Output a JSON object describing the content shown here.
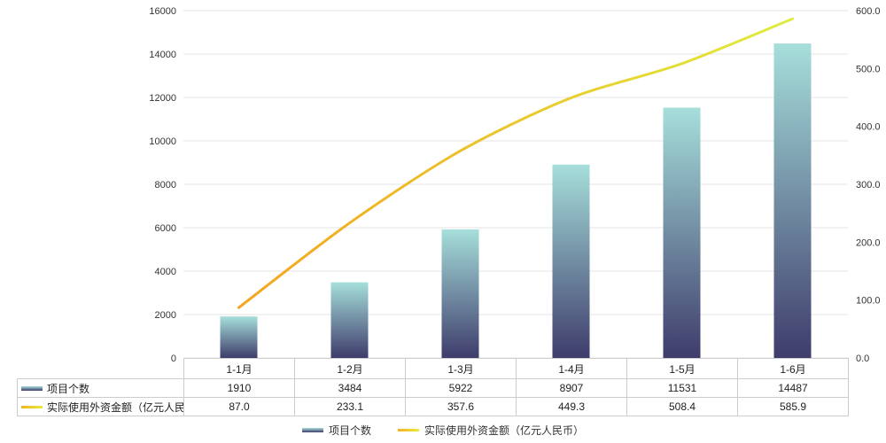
{
  "chart_data": {
    "type": "combo",
    "categories": [
      "1-1月",
      "1-2月",
      "1-3月",
      "1-4月",
      "1-5月",
      "1-6月"
    ],
    "series": [
      {
        "name": "项目个数",
        "type": "bar",
        "axis": "left",
        "values": [
          1910,
          3484,
          5922,
          8907,
          11531,
          14487
        ],
        "display": [
          "1910",
          "3484",
          "5922",
          "8907",
          "11531",
          "14487"
        ]
      },
      {
        "name": "实际使用外资金额（亿元人民币）",
        "type": "line",
        "axis": "right",
        "values": [
          87.0,
          233.1,
          357.6,
          449.3,
          508.4,
          585.9
        ],
        "display": [
          "87.0",
          "233.1",
          "357.6",
          "449.3",
          "508.4",
          "585.9"
        ]
      }
    ],
    "y_left": {
      "min": 0,
      "max": 16000,
      "step": 2000,
      "decimals": 0
    },
    "y_right": {
      "min": 0,
      "max": 600,
      "step": 100,
      "decimals": 1
    },
    "grid": true,
    "legend_position": "bottom",
    "colors": {
      "bar_top": "#A6DFDB",
      "bar_bottom": "#3E3C6B",
      "line_start": "#F4A41F",
      "line_end": "#DFEC3D",
      "gridline": "#E4E4E4",
      "axis_text": "#333333",
      "table_border": "#CCCCCC"
    }
  }
}
